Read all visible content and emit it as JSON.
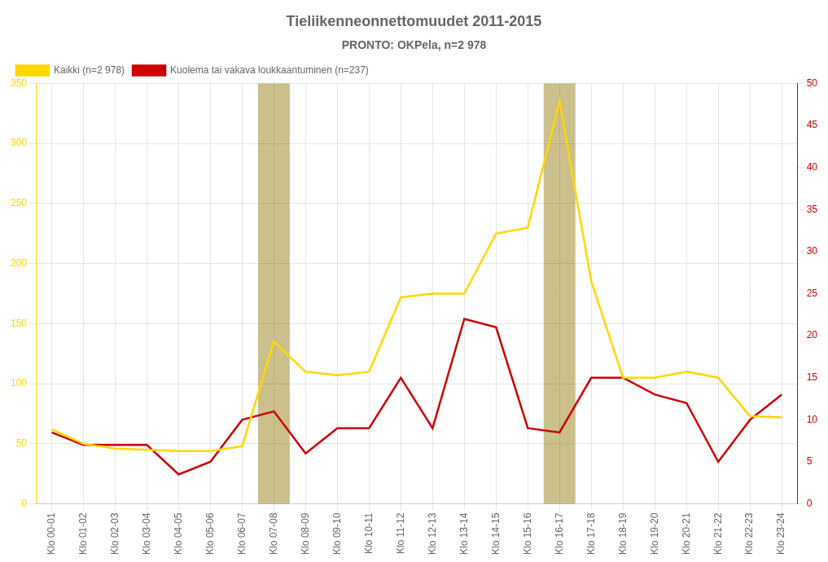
{
  "chart_data": {
    "type": "line",
    "title": "Tieliikenneonnettomuudet 2011-2015",
    "subtitle": "PRONTO: OKPela, n=2 978",
    "categories": [
      "Klo 00-01",
      "Klo 01-02",
      "Klo 02-03",
      "Klo 03-04",
      "Klo 04-05",
      "Klo 05-06",
      "Klo 06-07",
      "Klo 07-08",
      "Klo 08-09",
      "Klo 09-10",
      "Klo 10-11",
      "Klo 11-12",
      "Klo 12-13",
      "Klo 13-14",
      "Klo 14-15",
      "Klo 15-16",
      "Klo 16-17",
      "Klo 17-18",
      "Klo 18-19",
      "Klo 19-20",
      "Klo 20-21",
      "Klo 21-22",
      "Klo 22-23",
      "Klo 23-24"
    ],
    "series": [
      {
        "name": "Kaikki (n=2 978)",
        "color": "#FFD700",
        "axis": "y",
        "values": [
          62,
          50,
          46,
          45,
          44,
          44,
          48,
          135,
          110,
          107,
          110,
          172,
          175,
          175,
          225,
          230,
          335,
          185,
          105,
          105,
          110,
          105,
          73,
          72
        ]
      },
      {
        "name": "Kuolema tai vakava loukkaantuminen (n=237)",
        "color": "#CC0000",
        "axis": "y2",
        "values": [
          8.5,
          7.0,
          7.0,
          7.0,
          3.5,
          5.0,
          10.0,
          11.0,
          6.0,
          9.0,
          9.0,
          15.0,
          9.0,
          22.0,
          21.0,
          9.0,
          8.5,
          15.0,
          15.0,
          13.0,
          12.0,
          5.0,
          10.0,
          13.0
        ]
      }
    ],
    "highlights": [
      {
        "category": "Klo 07-08",
        "color": "#8B7000"
      },
      {
        "category": "Klo 16-17",
        "color": "#8B7000"
      }
    ],
    "ylim": [
      0,
      350
    ],
    "yticks": [
      0,
      50,
      100,
      150,
      200,
      250,
      300,
      350
    ],
    "y2lim": [
      0,
      50
    ],
    "y2ticks": [
      0,
      5,
      10,
      15,
      20,
      25,
      30,
      35,
      40,
      45,
      50
    ],
    "grid": true,
    "legend": "upper left"
  }
}
